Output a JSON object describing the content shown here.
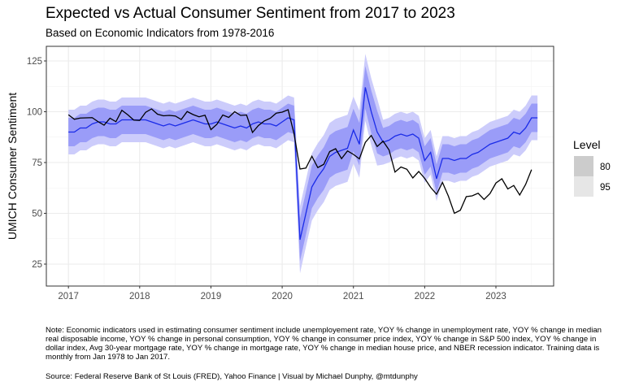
{
  "chart_data": {
    "type": "line",
    "title": "Expected vs Actual Consumer Sentiment from 2017 to 2023",
    "subtitle": "Based on Economic Indicators from 1978-2016",
    "xlabel": "",
    "ylabel": "UMICH Consumer Sentiment",
    "xlim": [
      2016.69,
      2023.81
    ],
    "ylim": [
      14.2,
      132.2
    ],
    "x_ticks": [
      "2017",
      "2018",
      "2019",
      "2020",
      "2021",
      "2022",
      "2023"
    ],
    "y_ticks": [
      "25",
      "50",
      "75",
      "100",
      "125"
    ],
    "grid": true,
    "start": "2017-01",
    "frequency": "monthly",
    "series": [
      {
        "name": "Actual",
        "color": "#000000",
        "values": [
          98.5,
          96.3,
          96.9,
          97.0,
          97.1,
          95.1,
          93.4,
          96.8,
          95.1,
          100.7,
          98.5,
          95.9,
          95.7,
          99.7,
          101.4,
          98.8,
          98.0,
          98.2,
          97.9,
          96.2,
          100.1,
          98.6,
          97.5,
          98.3,
          91.2,
          93.8,
          98.4,
          97.2,
          100.0,
          98.2,
          98.4,
          89.8,
          93.2,
          95.5,
          96.8,
          99.3,
          99.8,
          101.0,
          89.1,
          71.8,
          72.3,
          78.1,
          72.5,
          74.1,
          80.4,
          81.8,
          76.9,
          80.7,
          79.0,
          76.8,
          84.9,
          88.3,
          82.9,
          85.5,
          81.2,
          70.3,
          72.8,
          71.7,
          67.4,
          70.6,
          67.2,
          62.8,
          59.4,
          65.2,
          58.4,
          50.0,
          51.5,
          58.2,
          58.6,
          59.9,
          56.8,
          59.7,
          64.9,
          67.0,
          62.0,
          63.7,
          59.0,
          64.2,
          71.5
        ]
      },
      {
        "name": "Expected",
        "color": "#1a2be8",
        "values": [
          90,
          90,
          92,
          92,
          94,
          95,
          95,
          94,
          94,
          96,
          96,
          96,
          96,
          96,
          95,
          94,
          93,
          94,
          93,
          94,
          95,
          96,
          95,
          94,
          94,
          95,
          94,
          93,
          92,
          93,
          92,
          94,
          95,
          94,
          94,
          93,
          95,
          97,
          96,
          37,
          50,
          63,
          68,
          72,
          78,
          80,
          81,
          82,
          91,
          84,
          112,
          100,
          90,
          85,
          86,
          88,
          89,
          88,
          89,
          87,
          76,
          80,
          67,
          77,
          77,
          76,
          77,
          77,
          79,
          80,
          82,
          84,
          85,
          86,
          87,
          90,
          89,
          92,
          97,
          97
        ]
      }
    ],
    "prediction_interval_halfwidth": {
      "80": 7,
      "95": 11
    },
    "legend": {
      "title": "Level",
      "position": "right",
      "entries": [
        {
          "label": "80",
          "color": "#cccccc"
        },
        {
          "label": "95",
          "color": "#e6e6e6"
        }
      ]
    },
    "band_colors": {
      "80": "#9a9cf8",
      "95": "#ccccfb"
    }
  },
  "note": "Note: Economic indicators used in estimating consumer sentiment include unemployement rate, YOY % change in unemployment rate, YOY % change in median real disposable income, YOY % change in personal consumption, YOY % change in consumer price index, YOY % change in S&P 500 index, YOY % change in dollar index, Avg 30-year mortgage rate, YOY % change in mortgage rate, YOY % change in median house price, and NBER recession indicator. Training data is monthly from Jan 1978 to Jan 2017.",
  "source": "Source: Federal Reserve Bank of St Louis (FRED), Yahoo Finance | Visual by Michael Dunphy, @mtdunphy"
}
